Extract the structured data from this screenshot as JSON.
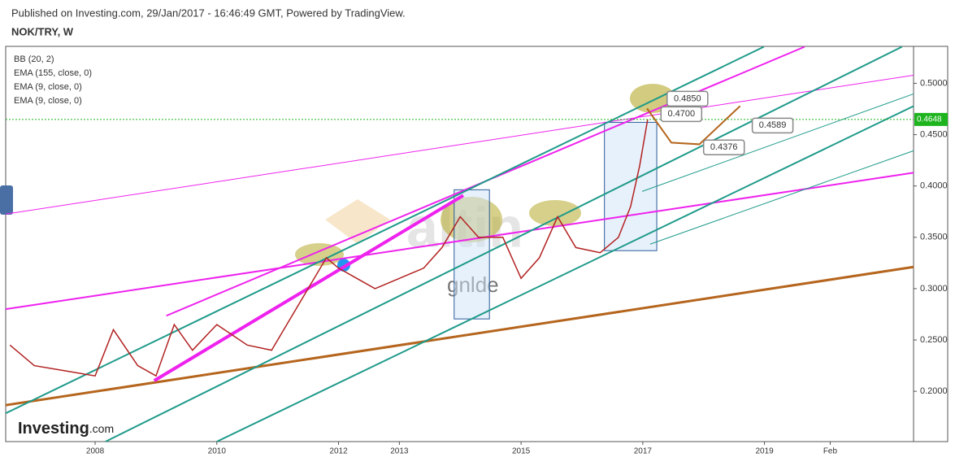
{
  "header": {
    "published": "Published on Investing.com, 29/Jan/2017 - 16:46:49 GMT, Powered by TradingView.",
    "symbol": "NOK/TRY, W"
  },
  "indicators": [
    "BB (20, 2)",
    "EMA (155, close, 0)",
    "EMA (9, close, 0)",
    "EMA (9, close, 0)"
  ],
  "watermark": {
    "logo": "Investing",
    "logo_suffix": ".com",
    "overlay": "gnlde",
    "brand": "altin"
  },
  "chart_data": {
    "type": "line",
    "x": [
      2006.6,
      2007.0,
      2007.5,
      2008.0,
      2008.3,
      2008.7,
      2009.0,
      2009.3,
      2009.6,
      2010.0,
      2010.5,
      2010.9,
      2011.2,
      2011.5,
      2011.8,
      2012.0,
      2012.3,
      2012.6,
      2013.0,
      2013.4,
      2013.7,
      2014.0,
      2014.3,
      2014.7,
      2015.0,
      2015.3,
      2015.6,
      2015.9,
      2016.3,
      2016.6,
      2016.8,
      2016.95,
      2017.08
    ],
    "series": [
      {
        "name": "NOK/TRY",
        "color": "#b22222",
        "values": [
          0.245,
          0.225,
          0.22,
          0.215,
          0.26,
          0.225,
          0.215,
          0.265,
          0.24,
          0.265,
          0.245,
          0.24,
          0.27,
          0.3,
          0.33,
          0.32,
          0.31,
          0.3,
          0.31,
          0.32,
          0.34,
          0.37,
          0.35,
          0.35,
          0.31,
          0.33,
          0.37,
          0.34,
          0.335,
          0.35,
          0.38,
          0.42,
          0.4648
        ]
      }
    ],
    "xlim": [
      2006.53,
      2021.45
    ],
    "ylim": [
      0.151,
      0.536
    ],
    "xticks": [
      2008,
      2010,
      2012,
      2013,
      2015,
      2017,
      2019,
      {
        "value": 2020.08,
        "label": "Feb"
      }
    ],
    "yticks": [
      {
        "value": 0.2,
        "label": "0.2000"
      },
      {
        "value": 0.25,
        "label": "0.2500"
      },
      {
        "value": 0.3,
        "label": "0.3000"
      },
      {
        "value": 0.35,
        "label": "0.3500"
      },
      {
        "value": 0.4,
        "label": "0.4000"
      },
      {
        "value": 0.45,
        "label": "0.4500"
      },
      {
        "value": 0.5,
        "label": "0.5000"
      }
    ],
    "last_price": {
      "value": 0.4648,
      "label": "0.4648",
      "color": "#1db41d"
    },
    "trend_lines": [
      {
        "color": "#b5651d",
        "width": 3,
        "x": [
          2006.53,
          2021.45
        ],
        "y": [
          0.1865,
          0.3211
        ]
      },
      {
        "color": "#ee22ee",
        "width": 1,
        "x": [
          2006.53,
          2021.45
        ],
        "y": [
          0.3726,
          0.5079
        ]
      },
      {
        "color": "#ee22ee",
        "width": 2,
        "x": [
          2006.53,
          2021.45
        ],
        "y": [
          0.28,
          0.4129
        ]
      },
      {
        "color": "#ee22ee",
        "width": 4,
        "x": [
          2008.97,
          2014.05
        ],
        "y": [
          0.2103,
          0.3908
        ]
      },
      {
        "color": "#ee22ee",
        "width": 2,
        "x": [
          2009.17,
          2019.66
        ],
        "y": [
          0.2736,
          0.5356
        ]
      },
      {
        "color": "#1e9a8a",
        "width": 2,
        "x": [
          2006.53,
          2018.99
        ],
        "y": [
          0.1786,
          0.5356
        ]
      },
      {
        "color": "#1e9a8a",
        "width": 2,
        "x": [
          2008.17,
          2021.26
        ],
        "y": [
          0.151,
          0.5356
        ]
      },
      {
        "color": "#1e9a8a",
        "width": 2,
        "x": [
          2010.0,
          2021.45
        ],
        "y": [
          0.151,
          0.4778
        ]
      },
      {
        "color": "#1e9a8a",
        "width": 1,
        "x": [
          2017.12,
          2021.45
        ],
        "y": [
          0.3433,
          0.4343
        ]
      },
      {
        "color": "#1e9a8a",
        "width": 1,
        "x": [
          2016.99,
          2021.45
        ],
        "y": [
          0.3947,
          0.4897
        ]
      },
      {
        "color": "#b5651d",
        "width": 2,
        "x": [
          2017.07,
          2017.47,
          2017.93,
          2018.6
        ],
        "y": [
          0.4755,
          0.4422,
          0.4406,
          0.4779
        ]
      }
    ],
    "boxes": [
      {
        "x": [
          2013.9,
          2014.48
        ],
        "y": [
          0.3963,
          0.2705
        ]
      },
      {
        "x": [
          2016.37,
          2017.23
        ],
        "y": [
          0.462,
          0.337
        ]
      }
    ],
    "annotations": [
      {
        "x": 2017.4,
        "value": 0.485,
        "label": "0.4850"
      },
      {
        "x": 2017.3,
        "value": 0.47,
        "label": "0.4700"
      },
      {
        "x": 2018.8,
        "value": 0.4589,
        "label": "0.4589"
      },
      {
        "x": 2018.0,
        "value": 0.4376,
        "label": "0.4376"
      }
    ]
  }
}
